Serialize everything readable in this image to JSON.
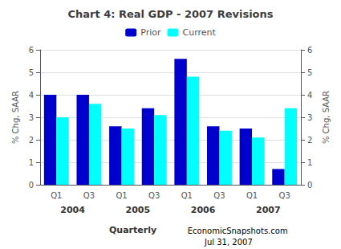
{
  "chart_data": {
    "type": "bar",
    "title": "Chart 4: Real GDP - 2007 Revisions",
    "ylabel": "% Chg, SAAR",
    "y2label": "% Chg, SAAR",
    "xlabel": "Quarterly",
    "categories": [
      "Q1",
      "Q3",
      "Q1",
      "Q3",
      "Q1",
      "Q3",
      "Q1",
      "Q3"
    ],
    "year_labels": [
      "2004",
      "2005",
      "2006",
      "2007"
    ],
    "annotations": [
      "EconomicSnapshots.com",
      "Jul 31, 2007"
    ],
    "series": [
      {
        "name": "Prior",
        "color": "#0000CD",
        "values": [
          4.0,
          4.0,
          2.6,
          3.4,
          5.6,
          2.6,
          2.5,
          0.7
        ]
      },
      {
        "name": "Current",
        "color": "#00FFFF",
        "values": [
          3.0,
          3.6,
          2.5,
          3.1,
          4.8,
          2.4,
          2.1,
          3.4
        ]
      }
    ],
    "ylim": [
      0,
      6
    ],
    "yticks": [
      0,
      1,
      2,
      3,
      4,
      5,
      6
    ],
    "y2lim": [
      0,
      6
    ],
    "y2ticks": [
      0,
      1,
      2,
      3,
      4,
      5,
      6
    ],
    "grid": true,
    "legend": "top"
  }
}
